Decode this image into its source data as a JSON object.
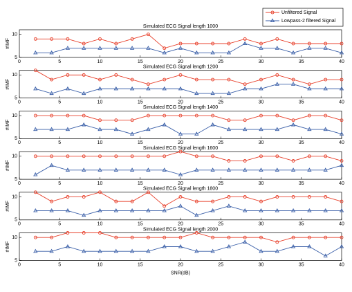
{
  "chart_data": [
    {
      "type": "line",
      "title": "Simulated ECG Signal length 1000",
      "ylabel": "#IMF",
      "x": [
        2,
        4,
        6,
        8,
        10,
        12,
        14,
        16,
        18,
        20,
        22,
        24,
        26,
        28,
        30,
        32,
        34,
        36,
        38,
        40
      ],
      "series": [
        {
          "name": "Unfiltered Signal",
          "color": "#e8412c",
          "values": [
            9,
            9,
            9,
            8,
            9,
            8,
            9,
            10,
            7,
            8,
            8,
            8,
            8,
            9,
            8,
            9,
            8,
            8,
            8,
            8
          ]
        },
        {
          "name": "Lowpass-2 filtered Signal",
          "color": "#3a5fa8",
          "values": [
            6,
            6,
            7,
            7,
            7,
            7,
            7,
            7,
            6,
            7,
            6,
            6,
            6,
            8,
            7,
            7,
            6,
            7,
            7,
            6
          ]
        }
      ],
      "xlim": [
        0,
        40
      ],
      "ylim": [
        5,
        11
      ],
      "xticks": [
        0,
        5,
        10,
        15,
        20,
        25,
        30,
        35,
        40
      ],
      "yticks": [
        5,
        10
      ]
    },
    {
      "type": "line",
      "title": "Simulated ECG Signal length 1200",
      "ylabel": "#IMF",
      "x": [
        2,
        4,
        6,
        8,
        10,
        12,
        14,
        16,
        18,
        20,
        22,
        24,
        26,
        28,
        30,
        32,
        34,
        36,
        38,
        40
      ],
      "series": [
        {
          "color": "#e8412c",
          "values": [
            11,
            9,
            10,
            10,
            9,
            10,
            9,
            8,
            9,
            10,
            9,
            9,
            9,
            8,
            9,
            10,
            9,
            8,
            9,
            9
          ]
        },
        {
          "color": "#3a5fa8",
          "values": [
            7,
            6,
            7,
            6,
            7,
            7,
            7,
            7,
            7,
            7,
            6,
            6,
            6,
            7,
            7,
            8,
            8,
            7,
            7,
            7
          ]
        }
      ],
      "xlim": [
        0,
        40
      ],
      "ylim": [
        5,
        11
      ],
      "xticks": [
        0,
        5,
        10,
        15,
        20,
        25,
        30,
        35,
        40
      ],
      "yticks": [
        5,
        10
      ]
    },
    {
      "type": "line",
      "title": "Simulated ECG Signal length 1400",
      "ylabel": "#IMF",
      "x": [
        2,
        4,
        6,
        8,
        10,
        12,
        14,
        16,
        18,
        20,
        22,
        24,
        26,
        28,
        30,
        32,
        34,
        36,
        38,
        40
      ],
      "series": [
        {
          "color": "#e8412c",
          "values": [
            10,
            10,
            10,
            10,
            9,
            9,
            9,
            10,
            10,
            10,
            10,
            10,
            9,
            9,
            10,
            10,
            9,
            10,
            10,
            9
          ]
        },
        {
          "color": "#3a5fa8",
          "values": [
            7,
            7,
            7,
            8,
            7,
            7,
            6,
            7,
            8,
            6,
            6,
            8,
            7,
            7,
            7,
            7,
            8,
            7,
            7,
            6
          ]
        }
      ],
      "xlim": [
        0,
        40
      ],
      "ylim": [
        5,
        11
      ],
      "xticks": [
        0,
        5,
        10,
        15,
        20,
        25,
        30,
        35,
        40
      ],
      "yticks": [
        5,
        10
      ]
    },
    {
      "type": "line",
      "title": "Simulated ECG Signal length 1600",
      "ylabel": "#IMF",
      "x": [
        2,
        4,
        6,
        8,
        10,
        12,
        14,
        16,
        18,
        20,
        22,
        24,
        26,
        28,
        30,
        32,
        34,
        36,
        38,
        40
      ],
      "series": [
        {
          "color": "#e8412c",
          "values": [
            10,
            10,
            10,
            10,
            10,
            10,
            10,
            10,
            10,
            11,
            10,
            10,
            9,
            9,
            10,
            10,
            9,
            10,
            10,
            9
          ]
        },
        {
          "color": "#3a5fa8",
          "values": [
            6,
            8,
            7,
            7,
            7,
            7,
            7,
            7,
            7,
            6,
            7,
            7,
            7,
            7,
            7,
            7,
            7,
            7,
            7,
            8
          ]
        }
      ],
      "xlim": [
        0,
        40
      ],
      "ylim": [
        5,
        11
      ],
      "xticks": [
        0,
        5,
        10,
        15,
        20,
        25,
        30,
        35,
        40
      ],
      "yticks": [
        5,
        10
      ]
    },
    {
      "type": "line",
      "title": "Simulated ECG Signal length 1800",
      "ylabel": "#IMF",
      "x": [
        2,
        4,
        6,
        8,
        10,
        12,
        14,
        16,
        18,
        20,
        22,
        24,
        26,
        28,
        30,
        32,
        34,
        36,
        38,
        40
      ],
      "series": [
        {
          "color": "#e8412c",
          "values": [
            11,
            9,
            10,
            10,
            11,
            9,
            9,
            11,
            8,
            10,
            9,
            9,
            10,
            10,
            9,
            10,
            10,
            10,
            10,
            9
          ]
        },
        {
          "color": "#3a5fa8",
          "values": [
            7,
            7,
            7,
            6,
            7,
            7,
            7,
            7,
            7,
            8,
            6,
            7,
            8,
            7,
            7,
            7,
            7,
            7,
            7,
            7
          ]
        }
      ],
      "xlim": [
        0,
        40
      ],
      "ylim": [
        5,
        11
      ],
      "xticks": [
        0,
        5,
        10,
        15,
        20,
        25,
        30,
        35,
        40
      ],
      "yticks": [
        5,
        10
      ]
    },
    {
      "type": "line",
      "title": "Simulated ECG Signal length 2000",
      "ylabel": "#IMF",
      "xlabel": "SNR(dB)",
      "x": [
        2,
        4,
        6,
        8,
        10,
        12,
        14,
        16,
        18,
        20,
        22,
        24,
        26,
        28,
        30,
        32,
        34,
        36,
        38,
        40
      ],
      "series": [
        {
          "color": "#e8412c",
          "values": [
            10,
            10,
            11,
            11,
            11,
            10,
            10,
            10,
            10,
            10,
            11,
            10,
            10,
            10,
            10,
            9,
            10,
            10,
            10,
            10
          ]
        },
        {
          "color": "#3a5fa8",
          "values": [
            7,
            7,
            8,
            7,
            7,
            7,
            7,
            7,
            8,
            8,
            7,
            7,
            8,
            9,
            7,
            7,
            8,
            8,
            6,
            8
          ]
        }
      ],
      "xlim": [
        0,
        40
      ],
      "ylim": [
        5,
        11
      ],
      "xticks": [
        0,
        5,
        10,
        15,
        20,
        25,
        30,
        35,
        40
      ],
      "yticks": [
        5,
        10
      ]
    }
  ]
}
